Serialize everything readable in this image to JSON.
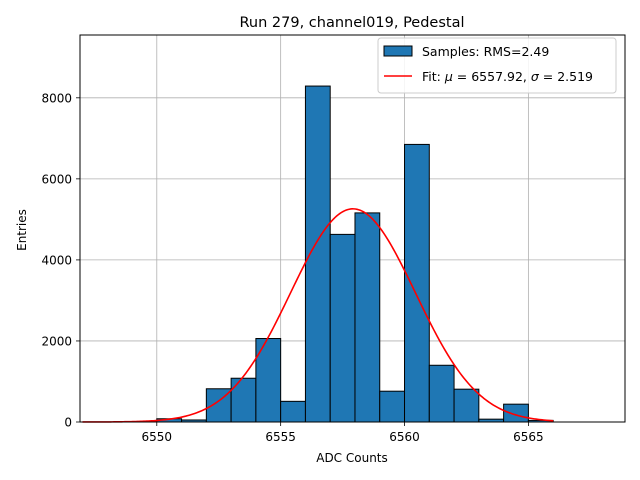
{
  "chart_data": {
    "type": "bar",
    "title": "Run 279, channel019, Pedestal",
    "xlabel": "ADC Counts",
    "ylabel": "Entries",
    "xlim": [
      6546.9,
      6568.9
    ],
    "ylim": [
      0,
      9550
    ],
    "xticks": [
      6550,
      6555,
      6560,
      6565
    ],
    "yticks": [
      0,
      2000,
      4000,
      6000,
      8000
    ],
    "grid": true,
    "legend_position": "top-right",
    "histogram": {
      "name": "Samples: RMS=2.49",
      "color": "#1f77b4",
      "bin_width": 1,
      "bin_starts": [
        6549,
        6550,
        6551,
        6552,
        6553,
        6554,
        6555,
        6556,
        6557,
        6558,
        6559,
        6560,
        6561,
        6562,
        6563,
        6564,
        6565
      ],
      "values": [
        10,
        80,
        50,
        820,
        1080,
        2060,
        510,
        8290,
        4630,
        5160,
        760,
        6850,
        1400,
        810,
        70,
        440,
        40
      ]
    },
    "fit": {
      "name": "Fit: μ = 6557.92, σ = 2.519",
      "label_parts": [
        "Fit: ",
        "μ",
        " = 6557.92, ",
        "σ",
        " = 2.519"
      ],
      "color": "#ff0000",
      "mu": 6557.92,
      "sigma": 2.519,
      "amplitude": 5260,
      "x_range": [
        6547,
        6566
      ]
    }
  }
}
